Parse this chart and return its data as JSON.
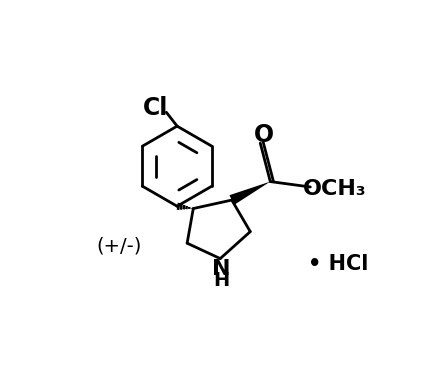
{
  "background_color": "#ffffff",
  "line_color": "#000000",
  "line_width": 2.0,
  "font_size_labels": 15,
  "label_Cl": "Cl",
  "label_O": "O",
  "label_OCH3": "OCH₃",
  "label_NH": "H",
  "label_pm": "(+/-)",
  "label_HCl": "• HCl",
  "figsize": [
    4.41,
    3.71
  ],
  "dpi": 100
}
